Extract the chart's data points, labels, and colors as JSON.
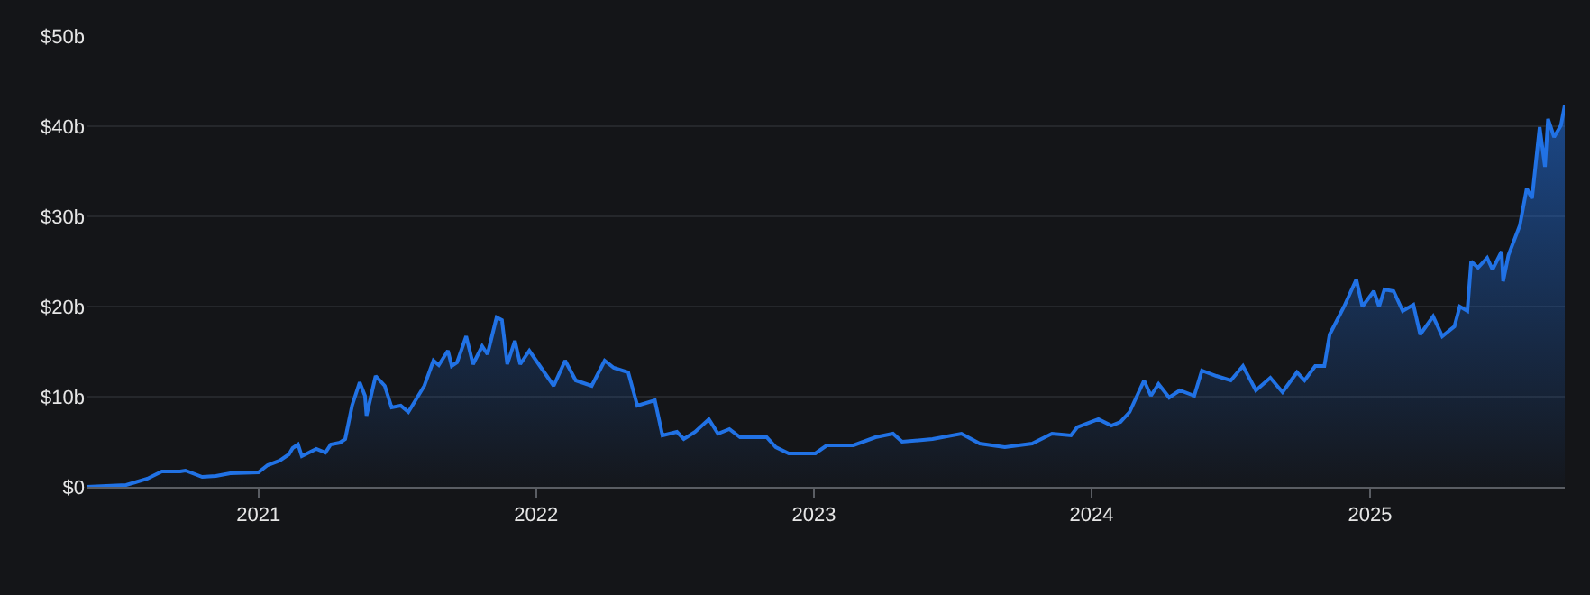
{
  "chart_data": {
    "type": "area",
    "grid": "y",
    "marker": "none",
    "x": [
      "2020-05-20",
      "2020-07-11",
      "2020-07-23",
      "2020-08-08",
      "2020-08-27",
      "2020-09-20",
      "2020-09-27",
      "2020-10-19",
      "2020-11-06",
      "2020-11-25",
      "2021-01-01",
      "2021-01-13",
      "2021-01-29",
      "2021-02-10",
      "2021-02-15",
      "2021-02-22",
      "2021-02-27",
      "2021-03-18",
      "2021-03-30",
      "2021-04-06",
      "2021-04-18",
      "2021-04-25",
      "2021-05-04",
      "2021-05-14",
      "2021-05-21",
      "2021-05-23",
      "2021-06-04",
      "2021-06-16",
      "2021-06-25",
      "2021-07-07",
      "2021-07-17",
      "2021-08-07",
      "2021-08-19",
      "2021-08-26",
      "2021-09-07",
      "2021-09-12",
      "2021-09-19",
      "2021-10-01",
      "2021-10-10",
      "2021-10-22",
      "2021-10-29",
      "2021-11-10",
      "2021-11-17",
      "2021-11-24",
      "2021-12-04",
      "2021-12-11",
      "2021-12-23",
      "2022-01-24",
      "2022-02-08",
      "2022-02-22",
      "2022-03-15",
      "2022-04-01",
      "2022-04-13",
      "2022-05-02",
      "2022-05-14",
      "2022-06-06",
      "2022-06-16",
      "2022-07-05",
      "2022-07-14",
      "2022-07-29",
      "2022-08-16",
      "2022-08-28",
      "2022-09-12",
      "2022-09-26",
      "2022-10-31",
      "2022-11-12",
      "2022-11-29",
      "2023-01-03",
      "2023-01-18",
      "2023-02-22",
      "2023-03-23",
      "2023-04-15",
      "2023-04-27",
      "2023-06-06",
      "2023-07-14",
      "2023-08-07",
      "2023-09-09",
      "2023-10-15",
      "2023-11-10",
      "2023-12-05",
      "2023-12-13",
      "2024-01-10",
      "2024-01-27",
      "2024-02-08",
      "2024-02-20",
      "2024-03-10",
      "2024-03-19",
      "2024-03-29",
      "2024-04-12",
      "2024-04-26",
      "2024-05-15",
      "2024-05-25",
      "2024-06-13",
      "2024-07-02",
      "2024-07-18",
      "2024-08-04",
      "2024-08-23",
      "2024-09-08",
      "2024-09-27",
      "2024-10-07",
      "2024-10-21",
      "2024-11-02",
      "2024-11-09",
      "2024-11-28",
      "2024-12-14",
      "2024-12-22",
      "2025-01-06",
      "2025-01-13",
      "2025-01-20",
      "2025-02-01",
      "2025-02-13",
      "2025-02-27",
      "2025-03-08",
      "2025-03-25",
      "2025-04-06",
      "2025-04-22",
      "2025-04-29",
      "2025-05-09",
      "2025-05-14",
      "2025-05-23",
      "2025-06-04",
      "2025-06-11",
      "2025-06-23",
      "2025-06-25",
      "2025-07-02",
      "2025-07-17",
      "2025-07-26",
      "2025-08-02",
      "2025-08-12",
      "2025-08-19",
      "2025-08-23",
      "2025-08-31",
      "2025-09-09",
      "2025-09-14"
    ],
    "series": [
      {
        "color": "#2172e5",
        "values": [
          0,
          0.2,
          0.5,
          0.9,
          1.7,
          1.7,
          1.8,
          1.1,
          1.2,
          1.5,
          1.6,
          2.4,
          2.9,
          3.6,
          4.3,
          4.7,
          3.4,
          4.2,
          3.8,
          4.7,
          4.9,
          5.3,
          9.0,
          11.6,
          10.1,
          7.9,
          12.3,
          11.2,
          8.8,
          9.0,
          8.3,
          11.2,
          14.0,
          13.5,
          15.1,
          13.4,
          13.8,
          16.7,
          13.6,
          15.6,
          14.7,
          18.8,
          18.5,
          13.6,
          16.2,
          13.6,
          15.1,
          11.2,
          14.0,
          11.8,
          11.2,
          14.0,
          13.2,
          12.7,
          9.0,
          9.6,
          5.7,
          6.1,
          5.3,
          6.1,
          7.5,
          5.9,
          6.4,
          5.5,
          5.5,
          4.4,
          3.7,
          3.7,
          4.6,
          4.6,
          5.5,
          5.9,
          5.0,
          5.3,
          5.9,
          4.8,
          4.4,
          4.8,
          5.9,
          5.7,
          6.6,
          7.5,
          6.8,
          7.2,
          8.3,
          11.8,
          10.1,
          11.4,
          9.9,
          10.7,
          10.1,
          12.9,
          12.3,
          11.8,
          13.4,
          10.7,
          12.1,
          10.5,
          12.7,
          11.8,
          13.4,
          13.4,
          16.9,
          20.0,
          23.0,
          20.0,
          21.7,
          20.0,
          21.9,
          21.7,
          19.5,
          20.2,
          16.9,
          18.9,
          16.7,
          17.8,
          20.0,
          19.5,
          25.0,
          24.3,
          25.4,
          24.1,
          26.1,
          22.8,
          25.7,
          29.0,
          33.1,
          32.0,
          39.9,
          35.5,
          40.8,
          38.8,
          40.1,
          42.3
        ]
      }
    ],
    "xlim": [
      "2020-05-20",
      "2025-09-14"
    ],
    "xticks": [
      {
        "value": "2021-01-01",
        "label": "2021"
      },
      {
        "value": "2022-01-01",
        "label": "2022"
      },
      {
        "value": "2023-01-01",
        "label": "2023"
      },
      {
        "value": "2024-01-01",
        "label": "2024"
      },
      {
        "value": "2025-01-01",
        "label": "2025"
      }
    ],
    "ylim": [
      0,
      50
    ],
    "yticks": [
      {
        "value": 0,
        "label": "$0"
      },
      {
        "value": 10,
        "label": "$10b"
      },
      {
        "value": 20,
        "label": "$20b"
      },
      {
        "value": 30,
        "label": "$30b"
      },
      {
        "value": 40,
        "label": "$40b"
      },
      {
        "value": 50,
        "label": "$50b"
      }
    ]
  }
}
